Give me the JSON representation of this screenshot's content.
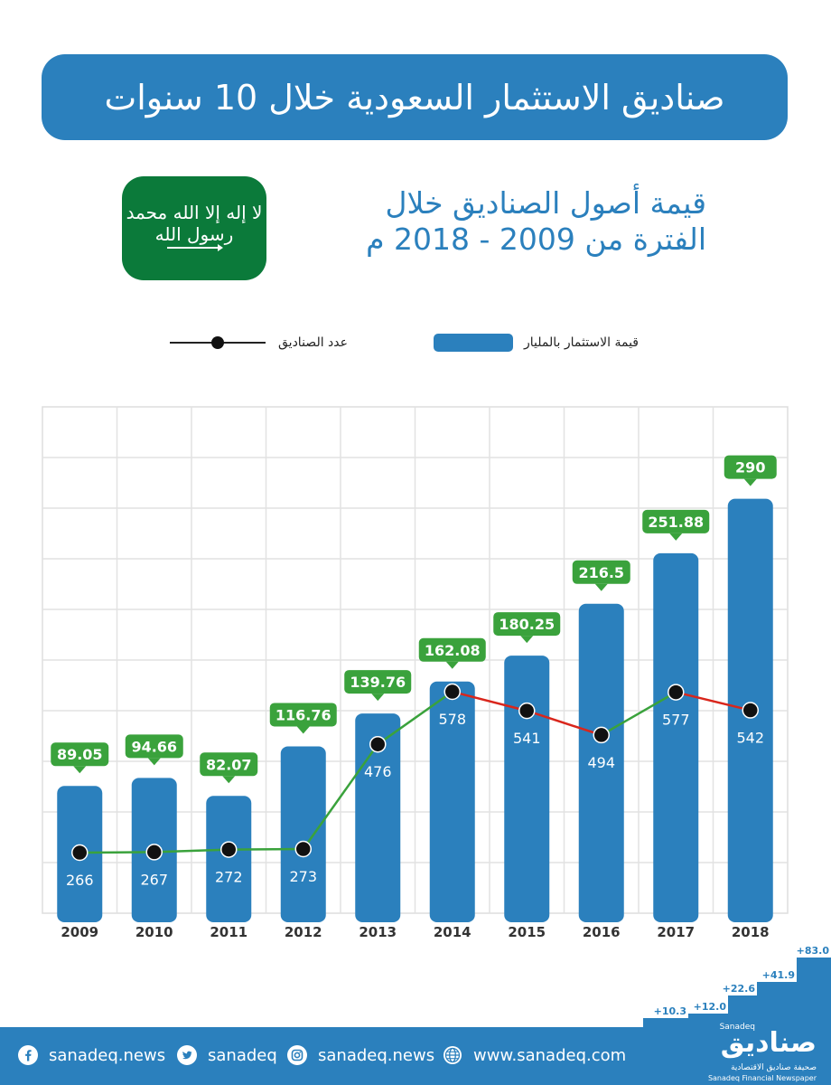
{
  "header": {
    "title": "صناديق الاستثمار السعودية خلال 10 سنوات"
  },
  "flag": {
    "shahada": "لا إله إلا الله محمد رسول الله"
  },
  "subtitle": {
    "line1": "قيمة أصول الصناديق خلال",
    "line2": "الفترة من 2009 - 2018 م"
  },
  "legend": {
    "bars_label": "قيمة الاستثمار بالمليار",
    "line_label": "عدد الصناديق"
  },
  "colors": {
    "bar": "#2b80bd",
    "badge": "#3aa23c",
    "increase": "#3aa23c",
    "decrease": "#d9261c"
  },
  "chart_data": {
    "type": "bar",
    "categories": [
      "2009",
      "2010",
      "2011",
      "2012",
      "2013",
      "2014",
      "2015",
      "2016",
      "2017",
      "2018"
    ],
    "series": [
      {
        "name": "قيمة الاستثمار بالمليار",
        "type": "bar",
        "values": [
          89.05,
          94.66,
          82.07,
          116.76,
          139.76,
          162.08,
          180.25,
          216.5,
          251.88,
          290
        ]
      },
      {
        "name": "عدد الصناديق",
        "type": "line",
        "values": [
          266,
          267,
          272,
          273,
          476,
          578,
          541,
          494,
          577,
          542
        ]
      }
    ],
    "value_labels": [
      "89.05",
      "94.66",
      "82.07",
      "116.76",
      "139.76",
      "162.08",
      "180.25",
      "216.5",
      "251.88",
      "290"
    ],
    "count_labels": [
      "266",
      "267",
      "272",
      "273",
      "476",
      "578",
      "541",
      "494",
      "577",
      "542"
    ],
    "grid": true
  },
  "logo_steps": [
    "+10.3",
    "+12.0",
    "+22.6",
    "+41.9",
    "+83.0"
  ],
  "footer": {
    "facebook": "sanadeq.news",
    "twitter": "sanadeq",
    "instagram": "sanadeq.news",
    "website": "www.sanadeq.com"
  },
  "logo": {
    "main": "صناديق",
    "en_top": "Sanadeq",
    "sub_ar": "صحيفة صناديق الاقتصادية",
    "sub_en": "Sanadeq Financial Newspaper"
  }
}
